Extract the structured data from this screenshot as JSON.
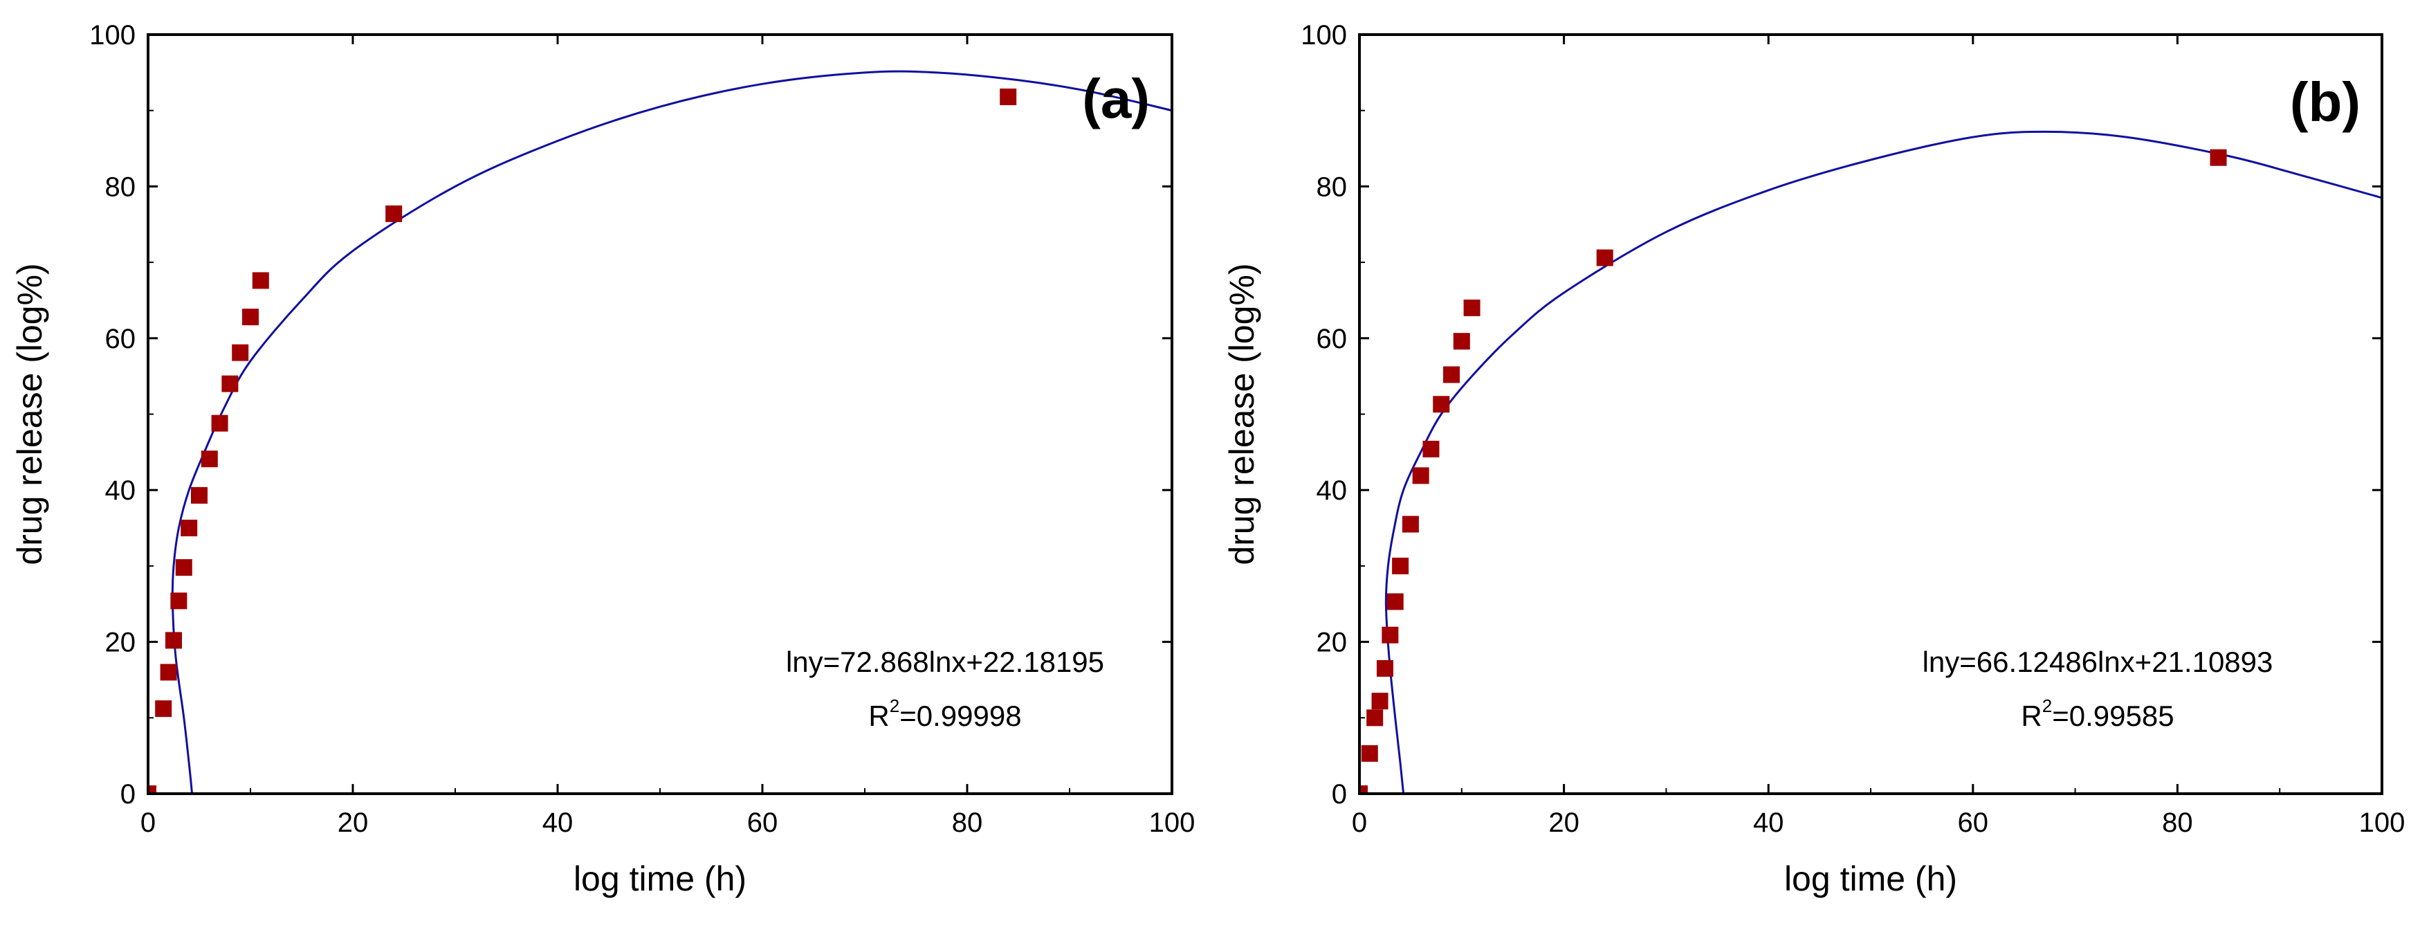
{
  "chart_data": [
    {
      "type": "scatter",
      "panel_label": "(a)",
      "xlabel": "log time (h)",
      "ylabel": "drug release (log%)",
      "xlim": [
        0,
        100
      ],
      "ylim": [
        0,
        100
      ],
      "xticks": [
        0,
        20,
        40,
        60,
        80,
        100
      ],
      "yticks": [
        0,
        20,
        40,
        60,
        80,
        100
      ],
      "marker_color": "#A00000",
      "fit_color": "#1010A0",
      "series": [
        {
          "name": "data",
          "points": [
            [
              0,
              0
            ],
            [
              1.5,
              11.2
            ],
            [
              2,
              16
            ],
            [
              2.5,
              20.2
            ],
            [
              3,
              25.4
            ],
            [
              3.5,
              29.8
            ],
            [
              4,
              35
            ],
            [
              5,
              39.3
            ],
            [
              6,
              44.1
            ],
            [
              7,
              48.8
            ],
            [
              8,
              54
            ],
            [
              9,
              58.1
            ],
            [
              10,
              62.8
            ],
            [
              11,
              67.6
            ],
            [
              24,
              76.4
            ],
            [
              84,
              91.8
            ]
          ]
        },
        {
          "name": "fit",
          "points": [
            [
              4.3,
              0
            ],
            [
              4,
              4
            ],
            [
              3.5,
              10
            ],
            [
              2.7,
              18
            ],
            [
              2.4,
              25
            ],
            [
              2.5,
              30
            ],
            [
              3,
              35
            ],
            [
              4,
              40
            ],
            [
              5.5,
              45
            ],
            [
              7.5,
              51
            ],
            [
              10,
              57
            ],
            [
              15,
              65
            ],
            [
              20,
              71.5
            ],
            [
              30,
              80
            ],
            [
              40,
              86
            ],
            [
              50,
              90.5
            ],
            [
              60,
              93.5
            ],
            [
              70,
              95
            ],
            [
              77,
              95
            ],
            [
              85,
              94
            ],
            [
              92,
              92.5
            ],
            [
              100,
              90
            ]
          ]
        }
      ],
      "annotation": {
        "equation": "lny=72.868lnx+22.18195",
        "r2_prefix": "R",
        "r2_exp": "2",
        "r2_value": "=0.99998"
      }
    },
    {
      "type": "scatter",
      "panel_label": "(b)",
      "xlabel": "log time (h)",
      "ylabel": "drug release (log%)",
      "xlim": [
        0,
        100
      ],
      "ylim": [
        0,
        100
      ],
      "xticks": [
        0,
        20,
        40,
        60,
        80,
        100
      ],
      "yticks": [
        0,
        20,
        40,
        60,
        80,
        100
      ],
      "marker_color": "#A00000",
      "fit_color": "#1010A0",
      "series": [
        {
          "name": "data",
          "points": [
            [
              0,
              0
            ],
            [
              1,
              5.3
            ],
            [
              1.5,
              10
            ],
            [
              2,
              12.2
            ],
            [
              2.5,
              16.5
            ],
            [
              3,
              20.9
            ],
            [
              3.5,
              25.3
            ],
            [
              4,
              30
            ],
            [
              5,
              35.5
            ],
            [
              6,
              41.9
            ],
            [
              7,
              45.4
            ],
            [
              8,
              51.3
            ],
            [
              9,
              55.2
            ],
            [
              10,
              59.6
            ],
            [
              11,
              64
            ],
            [
              24,
              70.6
            ],
            [
              84,
              83.8
            ]
          ]
        },
        {
          "name": "fit",
          "points": [
            [
              4.3,
              0
            ],
            [
              4,
              4
            ],
            [
              3.5,
              10
            ],
            [
              2.9,
              18
            ],
            [
              2.6,
              25
            ],
            [
              2.8,
              30
            ],
            [
              3.4,
              35
            ],
            [
              4.3,
              40
            ],
            [
              6,
              45
            ],
            [
              8,
              50
            ],
            [
              11,
              55
            ],
            [
              15,
              60.5
            ],
            [
              20,
              66
            ],
            [
              30,
              74
            ],
            [
              40,
              79.5
            ],
            [
              50,
              83.5
            ],
            [
              60,
              86.5
            ],
            [
              67,
              87.2
            ],
            [
              75,
              86.5
            ],
            [
              85,
              84
            ],
            [
              92,
              81.5
            ],
            [
              100,
              78.5
            ]
          ]
        }
      ],
      "annotation": {
        "equation": "lny=66.12486lnx+21.10893",
        "r2_prefix": "R",
        "r2_exp": "2",
        "r2_value": "=0.99585"
      }
    }
  ]
}
